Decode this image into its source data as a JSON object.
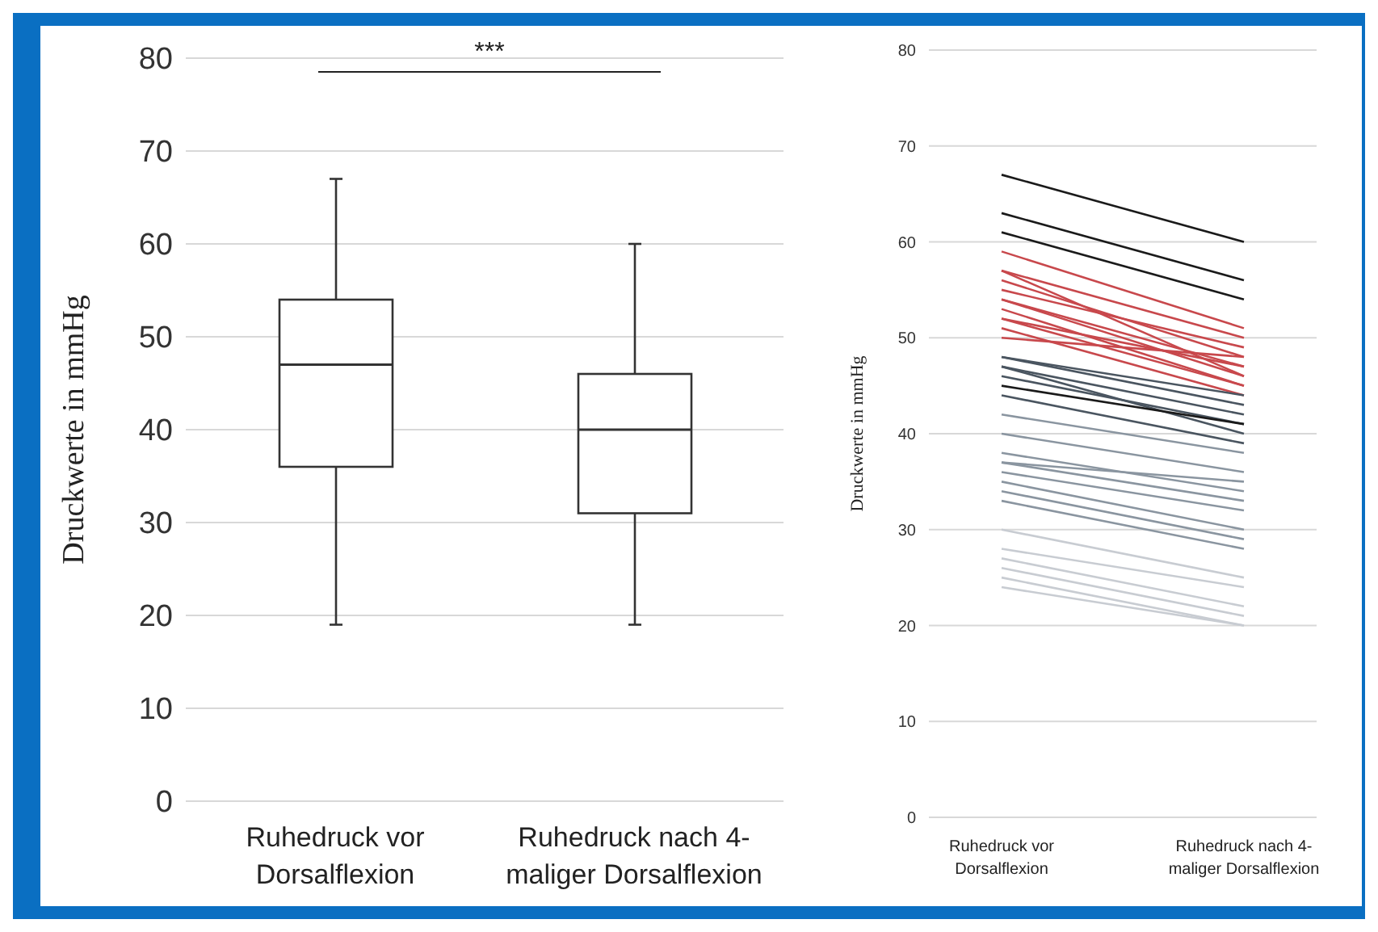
{
  "chart_data": [
    {
      "type": "box",
      "ylabel": "Druckwerte in mmHg",
      "categories": [
        "Ruhedruck vor Dorsalflexion",
        "Ruhedruck nach 4-maliger Dorsalflexion"
      ],
      "boxes": [
        {
          "low": 19,
          "q1": 36,
          "median": 47,
          "q3": 54,
          "high": 67
        },
        {
          "low": 19,
          "q1": 31,
          "median": 40,
          "q3": 46,
          "high": 60
        }
      ],
      "ylim": [
        0,
        80
      ],
      "yticks": [
        0,
        10,
        20,
        30,
        40,
        50,
        60,
        70,
        80
      ],
      "grid": "y",
      "annotations": [
        "***"
      ]
    },
    {
      "type": "line",
      "ylabel": "Druckwerte in mmHg",
      "categories": [
        "Ruhedruck vor Dorsalflexion",
        "Ruhedruck nach 4-maliger Dorsalflexion"
      ],
      "ylim": [
        0,
        80
      ],
      "yticks": [
        0,
        10,
        20,
        30,
        40,
        50,
        60,
        70,
        80
      ],
      "grid": "y",
      "marker": "none",
      "series": [
        {
          "color": "#1a1a1a",
          "values": [
            67,
            60
          ]
        },
        {
          "color": "#1a1a1a",
          "values": [
            63,
            56
          ]
        },
        {
          "color": "#1a1a1a",
          "values": [
            61,
            54
          ]
        },
        {
          "color": "#c8484c",
          "values": [
            59,
            51
          ]
        },
        {
          "color": "#c8484c",
          "values": [
            57,
            50
          ]
        },
        {
          "color": "#c8484c",
          "values": [
            56,
            48
          ]
        },
        {
          "color": "#c8484c",
          "values": [
            55,
            49
          ]
        },
        {
          "color": "#c8484c",
          "values": [
            54,
            46
          ]
        },
        {
          "color": "#c8484c",
          "values": [
            54,
            47
          ]
        },
        {
          "color": "#c8484c",
          "values": [
            53,
            45
          ]
        },
        {
          "color": "#c8484c",
          "values": [
            52,
            47
          ]
        },
        {
          "color": "#c8484c",
          "values": [
            52,
            45
          ]
        },
        {
          "color": "#c8484c",
          "values": [
            51,
            44
          ]
        },
        {
          "color": "#c8484c",
          "values": [
            50,
            48
          ]
        },
        {
          "color": "#c8484c",
          "values": [
            57,
            46
          ]
        },
        {
          "color": "#4a5560",
          "values": [
            48,
            43
          ]
        },
        {
          "color": "#4a5560",
          "values": [
            47,
            42
          ]
        },
        {
          "color": "#4a5560",
          "values": [
            47,
            40
          ]
        },
        {
          "color": "#4a5560",
          "values": [
            46,
            41
          ]
        },
        {
          "color": "#4a5560",
          "values": [
            48,
            44
          ]
        },
        {
          "color": "#1a1a1a",
          "values": [
            45,
            41
          ]
        },
        {
          "color": "#4a5560",
          "values": [
            44,
            39
          ]
        },
        {
          "color": "#8a95a0",
          "values": [
            42,
            38
          ]
        },
        {
          "color": "#8a95a0",
          "values": [
            40,
            36
          ]
        },
        {
          "color": "#8a95a0",
          "values": [
            38,
            34
          ]
        },
        {
          "color": "#8a95a0",
          "values": [
            37,
            33
          ]
        },
        {
          "color": "#8a95a0",
          "values": [
            36,
            32
          ]
        },
        {
          "color": "#8a95a0",
          "values": [
            35,
            30
          ]
        },
        {
          "color": "#8a95a0",
          "values": [
            34,
            29
          ]
        },
        {
          "color": "#8a95a0",
          "values": [
            33,
            28
          ]
        },
        {
          "color": "#8a95a0",
          "values": [
            37,
            35
          ]
        },
        {
          "color": "#c8ccd2",
          "values": [
            30,
            25
          ]
        },
        {
          "color": "#c8ccd2",
          "values": [
            28,
            24
          ]
        },
        {
          "color": "#c8ccd2",
          "values": [
            27,
            22
          ]
        },
        {
          "color": "#c8ccd2",
          "values": [
            26,
            21
          ]
        },
        {
          "color": "#c8ccd2",
          "values": [
            25,
            20
          ]
        },
        {
          "color": "#c8ccd2",
          "values": [
            24,
            20
          ]
        }
      ]
    }
  ]
}
